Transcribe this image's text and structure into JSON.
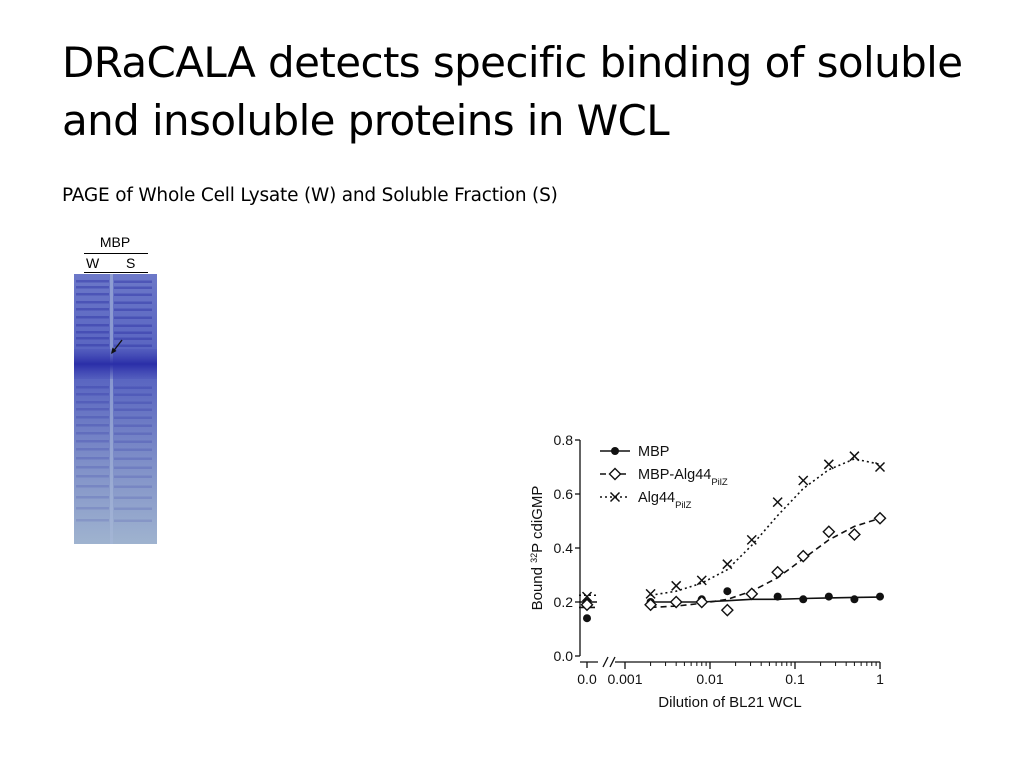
{
  "slide": {
    "title": "DRaCALA detects specific binding of soluble and insoluble proteins in WCL",
    "subtitle": "PAGE of Whole Cell Lysate (W) and Soluble Fraction (S)"
  },
  "gel": {
    "header": "MBP",
    "lanes": [
      "W",
      "S"
    ],
    "stain_color": "#3a3fb0",
    "background_color": "#8a9ec9"
  },
  "chart_data": {
    "type": "scatter",
    "xlabel": "Dilution of BL21 WCL",
    "ylabel_prefix": "Bound ",
    "ylabel_superscript": "32",
    "ylabel_suffix": "P cdiGMP",
    "x_scale": "log",
    "x_axis_break": true,
    "x_zero_tick": "0.0",
    "x_ticks": [
      "0.001",
      "0.01",
      "0.1",
      "1"
    ],
    "x_tick_values": [
      0.001,
      0.01,
      0.1,
      1
    ],
    "xlim": [
      0.001,
      1
    ],
    "ylim": [
      0.0,
      0.8
    ],
    "y_ticks": [
      "0.0",
      "0.2",
      "0.4",
      "0.6",
      "0.8"
    ],
    "y_tick_values": [
      0.0,
      0.2,
      0.4,
      0.6,
      0.8
    ],
    "grid": false,
    "legend_position": "top-left",
    "series": [
      {
        "name": "MBP",
        "marker": "filled-circle",
        "line": "solid",
        "zero_points": [
          0.14,
          0.2
        ],
        "x": [
          0.002,
          0.004,
          0.008,
          0.016,
          0.031,
          0.0625,
          0.125,
          0.25,
          0.5,
          1
        ],
        "y": [
          0.2,
          0.2,
          0.21,
          0.24,
          0.23,
          0.22,
          0.21,
          0.22,
          0.21,
          0.22
        ],
        "fit_y": [
          0.2,
          0.2,
          0.2,
          0.205,
          0.21,
          0.21,
          0.213,
          0.215,
          0.217,
          0.218
        ]
      },
      {
        "name": "MBP-Alg44",
        "name_subscript": "PilZ",
        "marker": "open-diamond",
        "line": "dashed",
        "zero_points": [
          0.19
        ],
        "x": [
          0.002,
          0.004,
          0.008,
          0.016,
          0.031,
          0.0625,
          0.125,
          0.25,
          0.5,
          1
        ],
        "y": [
          0.19,
          0.2,
          0.2,
          0.17,
          0.23,
          0.31,
          0.37,
          0.46,
          0.45,
          0.51
        ],
        "fit_y": [
          0.18,
          0.185,
          0.195,
          0.21,
          0.24,
          0.29,
          0.36,
          0.43,
          0.48,
          0.51
        ]
      },
      {
        "name": "Alg44",
        "name_subscript": "PilZ",
        "marker": "x-cross",
        "line": "dotted",
        "zero_points": [
          0.22
        ],
        "x": [
          0.002,
          0.004,
          0.008,
          0.016,
          0.031,
          0.0625,
          0.125,
          0.25,
          0.5,
          1
        ],
        "y": [
          0.23,
          0.26,
          0.28,
          0.34,
          0.43,
          0.57,
          0.65,
          0.71,
          0.74,
          0.7
        ],
        "fit_y": [
          0.225,
          0.24,
          0.27,
          0.32,
          0.41,
          0.52,
          0.62,
          0.69,
          0.73,
          0.71
        ]
      }
    ]
  }
}
